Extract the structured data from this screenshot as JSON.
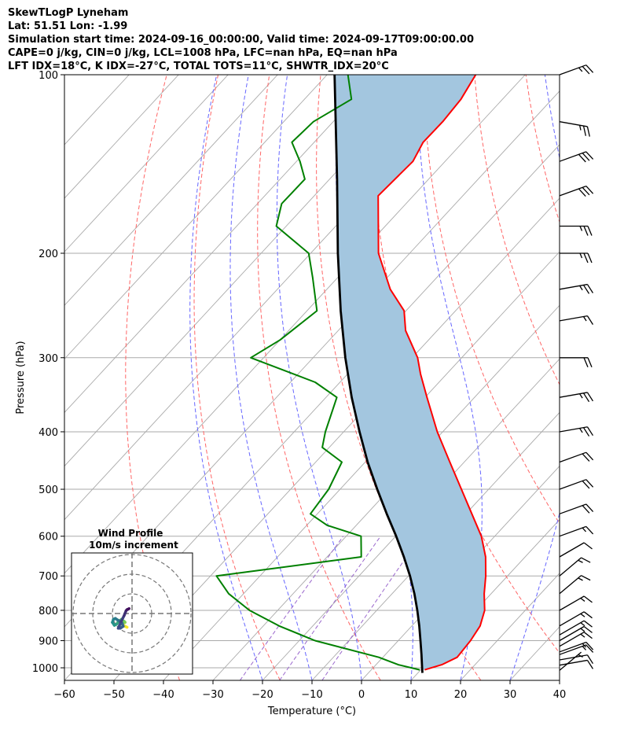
{
  "header": {
    "line1": "SkewTLogP Lyneham",
    "line2": "Lat: 51.51   Lon: -1.99",
    "line3": "Simulation start time: 2024-09-16_00:00:00, Valid time: 2024-09-17T09:00:00.00",
    "line4": "CAPE=0 j/kg, CIN=0 j/kg, LCL=1008 hPa, LFC=nan hPa, EQ=nan hPa",
    "line5": "LFT IDX=18°C, K IDX=-27°C, TOTAL TOTS=11°C, SHWTR_IDX=20°C"
  },
  "colors": {
    "temperature": "#ff0000",
    "dewpoint": "#008000",
    "parcel": "#000000",
    "shade": "#a3c6df",
    "dry_adiabat": "#ff6666",
    "moist_adiabat": "#6666ff",
    "mixing_ratio": "#9966cc",
    "isotherm": "#aaaaaa"
  },
  "chart_data": {
    "type": "line",
    "subtype": "skewT-logP",
    "xlabel": "Temperature (°C)",
    "ylabel": "Pressure (hPa)",
    "xlim": [
      -60,
      40
    ],
    "ylim": [
      1050,
      100
    ],
    "x_ticks": [
      -60,
      -50,
      -40,
      -30,
      -20,
      -10,
      0,
      10,
      20,
      30,
      40
    ],
    "x_tick_labels": [
      "−60",
      "−50",
      "−40",
      "−30",
      "−20",
      "−10",
      "0",
      "10",
      "20",
      "30",
      "40"
    ],
    "y_ticks": [
      1000,
      900,
      800,
      700,
      600,
      500,
      400,
      300,
      200,
      100
    ],
    "y_tick_labels": [
      "1000",
      "900",
      "800",
      "700",
      "600",
      "500",
      "400",
      "300",
      "200",
      "100"
    ],
    "series": [
      {
        "name": "Temperature",
        "pressure": [
          1008,
          988,
          960,
          900,
          850,
          800,
          750,
          700,
          650,
          600,
          550,
          500,
          450,
          400,
          350,
          320,
          300,
          270,
          250,
          230,
          200,
          180,
          160,
          140,
          130,
          120,
          110,
          100
        ],
        "values": [
          10.8,
          13.3,
          15.0,
          14.6,
          13.8,
          11.8,
          8.6,
          5.6,
          2.0,
          -2.7,
          -8.8,
          -15.5,
          -22.9,
          -31.1,
          -39.6,
          -45.2,
          -48.9,
          -56.4,
          -60.4,
          -67.2,
          -76.3,
          -81.4,
          -87.1,
          -86.5,
          -88.0,
          -87.9,
          -88.4,
          -90.0
        ]
      },
      {
        "name": "Dewpoint",
        "pressure": [
          1008,
          988,
          960,
          900,
          850,
          800,
          750,
          700,
          650,
          600,
          575,
          550,
          500,
          450,
          425,
          400,
          350,
          330,
          300,
          280,
          250,
          220,
          200,
          180,
          165,
          150,
          140,
          130,
          120,
          110,
          100
        ],
        "values": [
          9.8,
          4.5,
          -0.8,
          -16.8,
          -26.8,
          -35.7,
          -43.0,
          -48.8,
          -23.1,
          -27.0,
          -35.9,
          -41.4,
          -42.3,
          -44.7,
          -51.4,
          -53.7,
          -57.8,
          -65.0,
          -82.6,
          -80.0,
          -78.0,
          -85.0,
          -90.4,
          -102.0,
          -105.1,
          -105.0,
          -109.3,
          -114.5,
          -114.0,
          -110.5,
          -115.8
        ]
      },
      {
        "name": "Parcel",
        "pressure": [
          1020,
          1000,
          950,
          900,
          850,
          800,
          750,
          700,
          650,
          600,
          550,
          500,
          450,
          400,
          350,
          300,
          250,
          200,
          150,
          100
        ],
        "values": [
          10.9,
          9.9,
          7.3,
          4.5,
          1.5,
          -1.8,
          -5.5,
          -9.7,
          -14.5,
          -19.9,
          -26.0,
          -32.5,
          -39.5,
          -46.8,
          -54.8,
          -63.5,
          -73.2,
          -84.5,
          -98.5,
          -118.5
        ]
      }
    ],
    "hodograph": {
      "title": "Wind Profile",
      "subtitle": "10m/s increment",
      "rings_mps": [
        10,
        20,
        30
      ],
      "u": [
        -2.5,
        -3.5,
        -4.5,
        -5.0,
        -4.5,
        -3.5,
        -4.0,
        -5.0,
        -5.5,
        -6.0,
        -7.0,
        -7.5,
        -8.0,
        -9.0,
        -10.0,
        -9.5,
        -8.5,
        -7.0,
        -5.0,
        -4.5,
        -6.0,
        -7.0,
        -5.5,
        -4.0,
        -3.0,
        -2.5,
        -2.0,
        -1.5
      ],
      "v": [
        -7.0,
        -6.5,
        -6.0,
        -5.5,
        -5.0,
        -4.5,
        -4.0,
        -3.5,
        -3.0,
        -3.5,
        -4.0,
        -5.0,
        -5.5,
        -6.0,
        -4.5,
        -3.0,
        -2.5,
        -3.5,
        -5.0,
        -6.5,
        -7.5,
        -7.5,
        -4.0,
        -1.0,
        1.5,
        2.0,
        2.2,
        2.5
      ]
    },
    "wind_barbs": {
      "pressure": [
        1010,
        990,
        970,
        950,
        940,
        920,
        900,
        880,
        850,
        800,
        750,
        700,
        650,
        600,
        550,
        500,
        450,
        400,
        350,
        300,
        260,
        230,
        200,
        180,
        160,
        140,
        120,
        100
      ],
      "speed_kt": [
        5,
        10,
        10,
        15,
        15,
        15,
        15,
        15,
        15,
        15,
        15,
        15,
        10,
        15,
        20,
        20,
        20,
        25,
        25,
        20,
        15,
        25,
        25,
        25,
        30,
        30,
        25,
        25
      ],
      "direction_deg": [
        230,
        260,
        260,
        250,
        250,
        240,
        240,
        240,
        240,
        240,
        230,
        230,
        240,
        250,
        250,
        250,
        250,
        260,
        260,
        270,
        260,
        260,
        270,
        270,
        250,
        250,
        280,
        250
      ]
    }
  }
}
